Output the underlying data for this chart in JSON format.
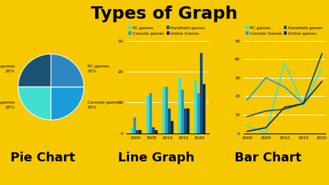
{
  "background_color": "#F5C800",
  "title": "Types of Graph",
  "title_fontsize": 18,
  "title_fontweight": "bold",
  "subtitle_labels": [
    "Pie Chart",
    "Line Graph",
    "Bar Chart"
  ],
  "subtitle_fontsize": 13,
  "subtitle_fontweight": "bold",
  "pie_sizes": [
    25,
    25,
    25,
    25
  ],
  "pie_colors": [
    "#1a5276",
    "#40e0d0",
    "#1a9cd8",
    "#2e86c1"
  ],
  "pie_label_fontsize": 4.5,
  "years": [
    2000,
    2005,
    2010,
    2015,
    2020
  ],
  "bar_pc": [
    2,
    12,
    15,
    18,
    17
  ],
  "bar_console": [
    5,
    13,
    15,
    14,
    13
  ],
  "bar_handheld": [
    1,
    2,
    8,
    8,
    26
  ],
  "bar_online": [
    1,
    1,
    4,
    8,
    16
  ],
  "bar_colors": [
    "#40e0d0",
    "#1a9cd8",
    "#1a5276",
    "#0a2a4a"
  ],
  "bar_ylim": [
    0,
    30
  ],
  "bar_yticks": [
    0,
    10,
    20,
    30
  ],
  "line_pc": [
    4,
    0,
    38,
    15,
    35
  ],
  "line_console": [
    18,
    30,
    25,
    16,
    43
  ],
  "line_handheld": [
    9,
    12,
    13,
    16,
    43
  ],
  "line_online": [
    1,
    3,
    14,
    16,
    28
  ],
  "line_colors": [
    "#40e0d0",
    "#1a9cd8",
    "#1a5276",
    "#0a2a4a"
  ],
  "line_ylim": [
    0,
    50
  ],
  "line_yticks": [
    0,
    10,
    20,
    30,
    40,
    50
  ],
  "bar_legend_labels": [
    "PC games",
    "Console games",
    "Handheld games",
    "Online Games"
  ],
  "line_legend_labels": [
    "PC games",
    "Console Games",
    "Handheld games",
    "Online games"
  ],
  "legend_colors": [
    "#40e0d0",
    "#1a9cd8",
    "#1a5276",
    "#0a2a4a"
  ],
  "legend_fontsize": 4.2,
  "tick_fontsize": 4.5
}
